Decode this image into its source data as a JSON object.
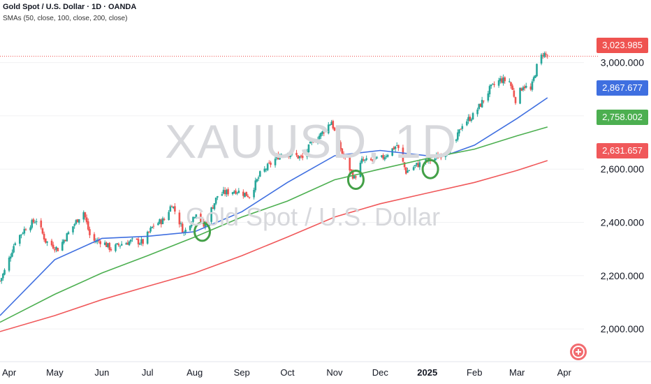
{
  "header": {
    "title": "Gold Spot / U.S. Dollar · 1D · OANDA",
    "indicator": "SMAs (50, close, 100, close, 200, close)"
  },
  "watermark": {
    "symbol": "XAUUSD, 1D",
    "description": "Gold Spot / U.S. Dollar"
  },
  "colors": {
    "up": "#26a69a",
    "down": "#ef5350",
    "sma50": "#3f6fe0",
    "sma100": "#4caf50",
    "sma200": "#f0585a",
    "annotation": "#43a047",
    "last_price_line": "#ef5350"
  },
  "price_labels": {
    "last": "3,023.985",
    "sma50": "2,867.677",
    "sma100": "2,758.002",
    "sma200": "2,631.657"
  },
  "chart_data": {
    "type": "candlestick",
    "y_ticks": [
      "3,000.000",
      "2,800.000",
      "2,600.000",
      "2,400.000",
      "2,200.000",
      "2,000.000"
    ],
    "y_tick_values": [
      3000,
      2800,
      2600,
      2400,
      2200,
      2000
    ],
    "ylim": [
      1885,
      3130
    ],
    "x_ticks": [
      "Apr",
      "May",
      "Jun",
      "Jul",
      "Aug",
      "Sep",
      "Oct",
      "Nov",
      "Dec",
      "2025",
      "Feb",
      "Mar",
      "Apr"
    ],
    "x_tick_dates": [
      "2024-04-01",
      "2024-05-01",
      "2024-06-01",
      "2024-07-01",
      "2024-08-01",
      "2024-09-01",
      "2024-10-01",
      "2024-11-01",
      "2024-12-01",
      "2025-01-01",
      "2025-02-01",
      "2025-03-01",
      "2025-04-01"
    ],
    "xlim": [
      "2024-03-26",
      "2025-04-14"
    ],
    "close_path": [
      [
        "2024-03-26",
        2180
      ],
      [
        "2024-03-30",
        2230
      ],
      [
        "2024-04-05",
        2330
      ],
      [
        "2024-04-12",
        2380
      ],
      [
        "2024-04-19",
        2410
      ],
      [
        "2024-04-25",
        2330
      ],
      [
        "2024-05-03",
        2300
      ],
      [
        "2024-05-10",
        2360
      ],
      [
        "2024-05-17",
        2420
      ],
      [
        "2024-05-20",
        2440
      ],
      [
        "2024-05-25",
        2330
      ],
      [
        "2024-06-01",
        2330
      ],
      [
        "2024-06-07",
        2300
      ],
      [
        "2024-06-14",
        2320
      ],
      [
        "2024-06-21",
        2330
      ],
      [
        "2024-06-28",
        2325
      ],
      [
        "2024-07-05",
        2390
      ],
      [
        "2024-07-12",
        2410
      ],
      [
        "2024-07-17",
        2470
      ],
      [
        "2024-07-25",
        2360
      ],
      [
        "2024-08-02",
        2440
      ],
      [
        "2024-08-07",
        2385
      ],
      [
        "2024-08-16",
        2500
      ],
      [
        "2024-08-20",
        2510
      ],
      [
        "2024-08-28",
        2520
      ],
      [
        "2024-09-06",
        2500
      ],
      [
        "2024-09-13",
        2580
      ],
      [
        "2024-09-20",
        2620
      ],
      [
        "2024-09-27",
        2660
      ],
      [
        "2024-10-04",
        2655
      ],
      [
        "2024-10-11",
        2640
      ],
      [
        "2024-10-18",
        2710
      ],
      [
        "2024-10-23",
        2730
      ],
      [
        "2024-10-30",
        2780
      ],
      [
        "2024-11-01",
        2740
      ],
      [
        "2024-11-06",
        2660
      ],
      [
        "2024-11-14",
        2565
      ],
      [
        "2024-11-19",
        2630
      ],
      [
        "2024-11-25",
        2630
      ],
      [
        "2024-12-02",
        2640
      ],
      [
        "2024-12-10",
        2680
      ],
      [
        "2024-12-12",
        2690
      ],
      [
        "2024-12-18",
        2590
      ],
      [
        "2024-12-25",
        2615
      ],
      [
        "2024-12-30",
        2625
      ],
      [
        "2025-01-06",
        2640
      ],
      [
        "2025-01-13",
        2665
      ],
      [
        "2025-01-20",
        2710
      ],
      [
        "2025-01-24",
        2770
      ],
      [
        "2025-01-31",
        2800
      ],
      [
        "2025-02-07",
        2860
      ],
      [
        "2025-02-11",
        2900
      ],
      [
        "2025-02-18",
        2935
      ],
      [
        "2025-02-24",
        2930
      ],
      [
        "2025-02-28",
        2860
      ],
      [
        "2025-03-05",
        2915
      ],
      [
        "2025-03-10",
        2895
      ],
      [
        "2025-03-14",
        2985
      ],
      [
        "2025-03-18",
        3035
      ],
      [
        "2025-03-21",
        3024
      ]
    ],
    "series": [
      {
        "name": "SMA 50",
        "values": [
          [
            "2024-03-26",
            2050
          ],
          [
            "2024-05-01",
            2260
          ],
          [
            "2024-06-01",
            2340
          ],
          [
            "2024-07-01",
            2348
          ],
          [
            "2024-08-01",
            2365
          ],
          [
            "2024-09-01",
            2440
          ],
          [
            "2024-10-01",
            2550
          ],
          [
            "2024-11-01",
            2650
          ],
          [
            "2024-12-01",
            2670
          ],
          [
            "2025-01-01",
            2650
          ],
          [
            "2025-01-15",
            2655
          ],
          [
            "2025-02-01",
            2690
          ],
          [
            "2025-03-01",
            2790
          ],
          [
            "2025-03-21",
            2868
          ]
        ]
      },
      {
        "name": "SMA 100",
        "values": [
          [
            "2024-03-26",
            2025
          ],
          [
            "2024-05-01",
            2130
          ],
          [
            "2024-06-01",
            2210
          ],
          [
            "2024-07-01",
            2275
          ],
          [
            "2024-08-01",
            2345
          ],
          [
            "2024-09-01",
            2420
          ],
          [
            "2024-10-01",
            2480
          ],
          [
            "2024-11-01",
            2560
          ],
          [
            "2024-12-01",
            2600
          ],
          [
            "2025-01-01",
            2640
          ],
          [
            "2025-02-01",
            2675
          ],
          [
            "2025-03-01",
            2725
          ],
          [
            "2025-03-21",
            2758
          ]
        ]
      },
      {
        "name": "SMA 200",
        "values": [
          [
            "2024-03-26",
            1990
          ],
          [
            "2024-05-01",
            2050
          ],
          [
            "2024-06-01",
            2110
          ],
          [
            "2024-07-01",
            2160
          ],
          [
            "2024-08-01",
            2210
          ],
          [
            "2024-09-01",
            2275
          ],
          [
            "2024-10-01",
            2345
          ],
          [
            "2024-11-01",
            2420
          ],
          [
            "2024-12-01",
            2470
          ],
          [
            "2025-01-01",
            2510
          ],
          [
            "2025-02-01",
            2550
          ],
          [
            "2025-03-01",
            2595
          ],
          [
            "2025-03-21",
            2632
          ]
        ]
      }
    ],
    "last_price": 3023.985,
    "annotations": [
      {
        "type": "circle",
        "date": "2024-08-06",
        "price": 2365
      },
      {
        "type": "circle",
        "date": "2024-11-15",
        "price": 2560
      },
      {
        "type": "circle",
        "date": "2025-01-03",
        "price": 2600
      }
    ]
  }
}
